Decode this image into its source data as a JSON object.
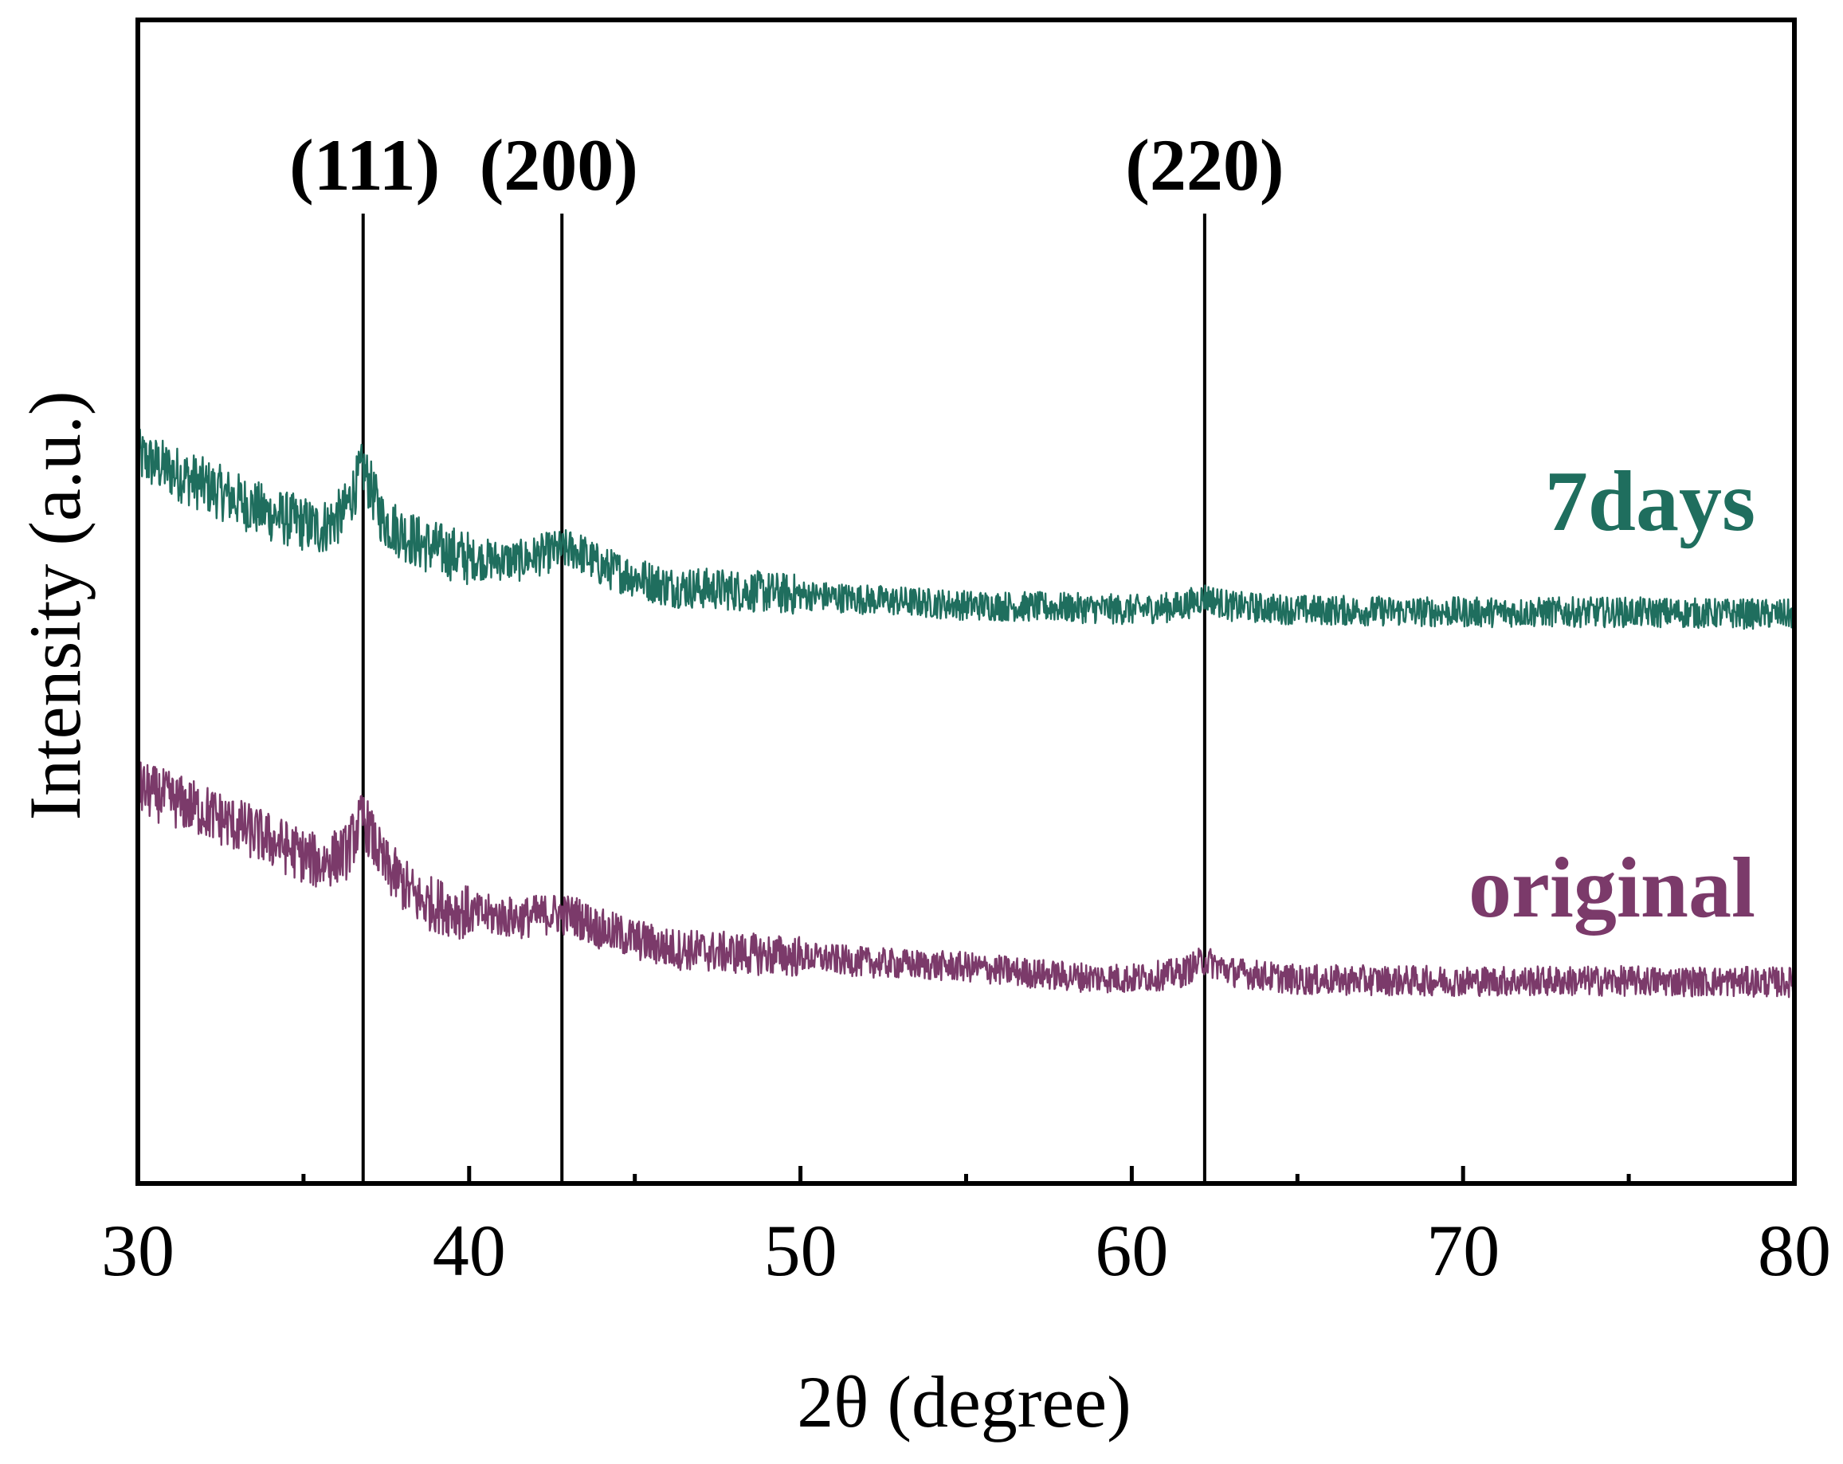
{
  "chart_data": {
    "type": "line",
    "xlabel": "2θ (degree)",
    "ylabel": "Intensity (a.u.)",
    "xlim": [
      30,
      80
    ],
    "ylim": [
      0,
      100
    ],
    "x_ticks": [
      "30",
      "40",
      "50",
      "60",
      "70",
      "80"
    ],
    "x_minor_ticks": [
      35,
      45,
      55,
      65,
      75
    ],
    "grid": false,
    "legend": "none (series labelled directly at right)",
    "peak_markers": [
      {
        "label": "(111)",
        "x": 36.8
      },
      {
        "label": "(200)",
        "x": 42.8
      },
      {
        "label": "(220)",
        "x": 62.2
      }
    ],
    "series": [
      {
        "name": "7days",
        "color": "#1f6e5e",
        "points": [
          [
            30,
            62.5
          ],
          [
            32,
            60
          ],
          [
            34,
            57.5
          ],
          [
            35.5,
            56.3
          ],
          [
            36.2,
            57.5
          ],
          [
            36.8,
            61.5
          ],
          [
            37.4,
            57
          ],
          [
            38.5,
            55
          ],
          [
            40,
            53.7
          ],
          [
            41.5,
            53.5
          ],
          [
            42.5,
            54.3
          ],
          [
            43.2,
            54.5
          ],
          [
            44,
            53
          ],
          [
            46,
            51.3
          ],
          [
            48,
            51
          ],
          [
            50,
            50.6
          ],
          [
            52,
            50.2
          ],
          [
            55,
            49.7
          ],
          [
            58,
            49.5
          ],
          [
            60,
            49.3
          ],
          [
            61.5,
            49.6
          ],
          [
            62.2,
            50.4
          ],
          [
            63,
            49.6
          ],
          [
            65,
            49.3
          ],
          [
            70,
            49.1
          ],
          [
            75,
            49.1
          ],
          [
            80,
            48.9
          ]
        ]
      },
      {
        "name": "original",
        "color": "#7b3a6a",
        "points": [
          [
            30,
            34
          ],
          [
            32,
            32
          ],
          [
            34,
            29.5
          ],
          [
            35.5,
            27.5
          ],
          [
            36.3,
            28.5
          ],
          [
            36.8,
            31.5
          ],
          [
            37.4,
            27.5
          ],
          [
            38.5,
            24.3
          ],
          [
            40,
            23.2
          ],
          [
            41.5,
            22.8
          ],
          [
            42.5,
            23.2
          ],
          [
            43.2,
            23
          ],
          [
            44,
            21.8
          ],
          [
            46,
            20.2
          ],
          [
            48,
            19.8
          ],
          [
            50,
            19.5
          ],
          [
            52,
            19
          ],
          [
            55,
            18.6
          ],
          [
            58,
            17.8
          ],
          [
            60,
            17.6
          ],
          [
            61.5,
            18.1
          ],
          [
            62.2,
            19.2
          ],
          [
            63,
            18.2
          ],
          [
            65,
            17.5
          ],
          [
            70,
            17.4
          ],
          [
            75,
            17.4
          ],
          [
            80,
            17.3
          ]
        ]
      }
    ]
  }
}
